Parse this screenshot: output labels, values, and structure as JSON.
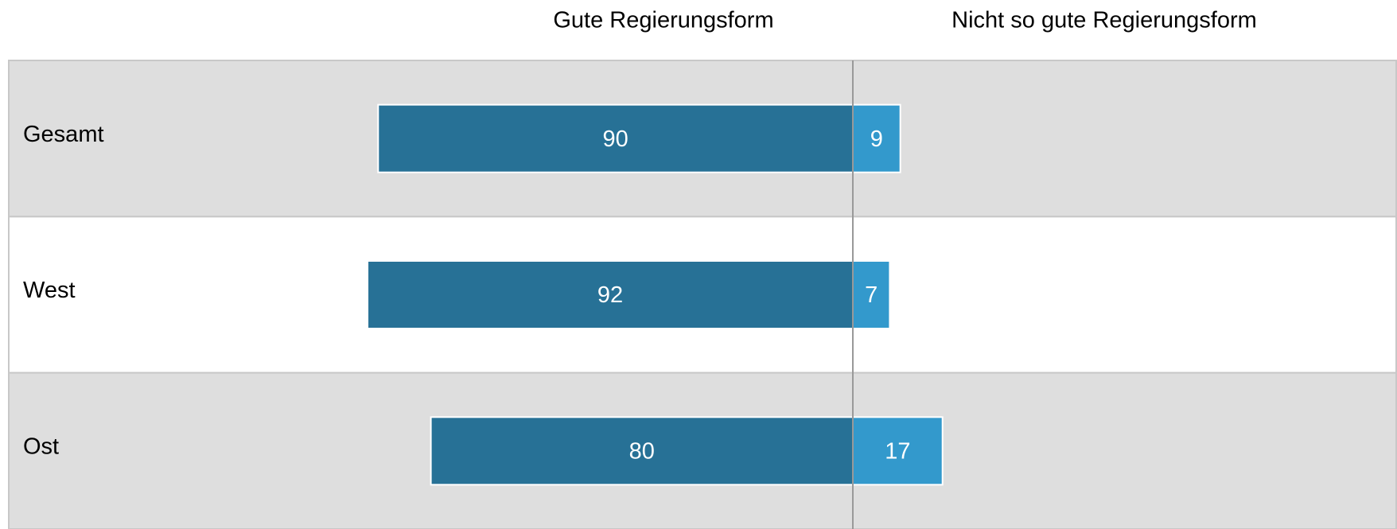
{
  "chart_data": {
    "type": "bar",
    "categories": [
      "Gesamt",
      "West",
      "Ost"
    ],
    "series": [
      {
        "name": "Gute Regierungsform",
        "color": "#277196",
        "values": [
          90,
          92,
          80
        ]
      },
      {
        "name": "Nicht so gute Regierungsform",
        "color": "#3399cc",
        "values": [
          9,
          7,
          17
        ]
      }
    ]
  }
}
